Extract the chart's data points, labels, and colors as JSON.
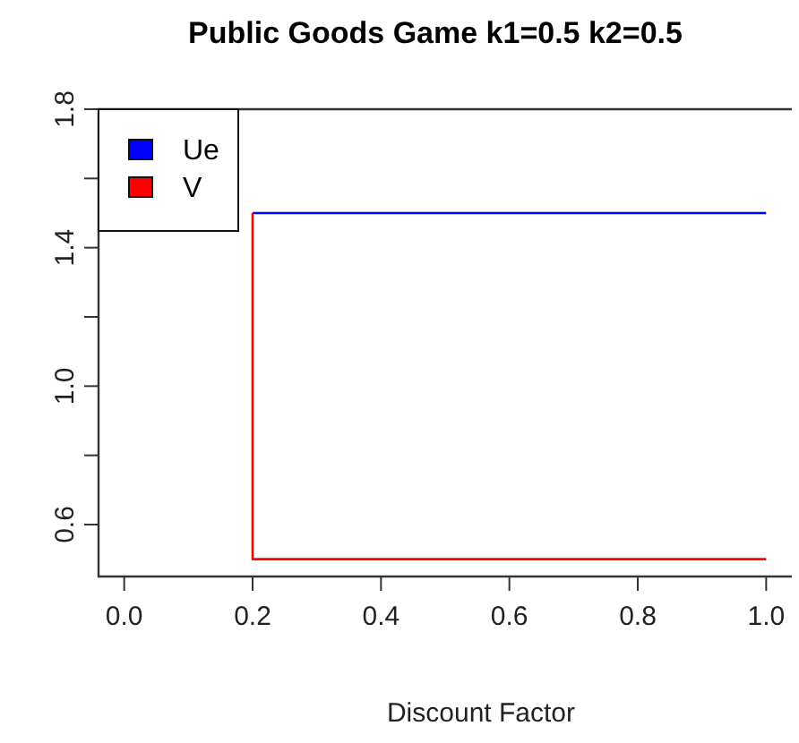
{
  "chart_data": {
    "type": "line",
    "title": "Public Goods Game k1=0.5 k2=0.5",
    "xlabel": "Discount Factor",
    "x": [
      0.2,
      1.0
    ],
    "series": [
      {
        "name": "Ue",
        "color": "#0000ff",
        "values": [
          1.5,
          1.5
        ]
      },
      {
        "name": "V",
        "type": "step",
        "color": "#ff0000",
        "values": [
          1.5,
          0.5
        ]
      }
    ],
    "xlim": [
      -0.04,
      1.04
    ],
    "xticks": [
      {
        "value": 0,
        "label": "0.0"
      },
      0.2,
      0.4,
      0.6,
      0.8,
      {
        "value": 1,
        "label": "1.0"
      }
    ],
    "ylim": [
      0.45,
      1.8
    ],
    "yticks": [
      0.6,
      {
        "value": 0.8,
        "label": null
      },
      {
        "value": 1,
        "label": "1.0"
      },
      {
        "value": 1.2,
        "label": null
      },
      1.4,
      {
        "value": 1.6,
        "label": null
      },
      1.8
    ],
    "legend": "top left",
    "grid": false,
    "marker": "none",
    "line_style": "solid"
  }
}
